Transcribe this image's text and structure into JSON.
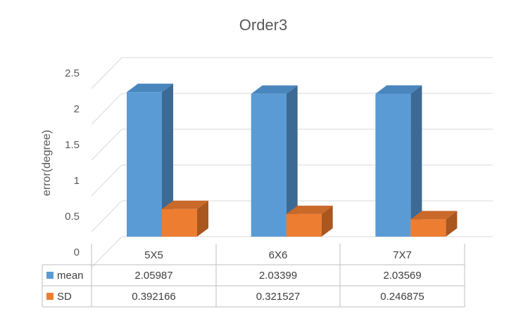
{
  "chart_data": {
    "type": "bar",
    "title": "Order3",
    "xlabel": "",
    "ylabel": "error(degree)",
    "ylim": [
      0,
      2.5
    ],
    "yticks": [
      0,
      0.5,
      1,
      1.5,
      2,
      2.5
    ],
    "ytick_labels": [
      "0",
      "0.5",
      "1",
      "1.5",
      "2",
      "2.5"
    ],
    "grid": true,
    "legend": "data-table",
    "categories": [
      "5X5",
      "6X6",
      "7X7"
    ],
    "series": [
      {
        "name": "mean",
        "values": [
          2.05987,
          2.03399,
          2.03569
        ],
        "value_labels": [
          "2.05987",
          "2.03399",
          "2.03569"
        ],
        "color": "#5b9bd5",
        "side_color": "#3d6a94",
        "top_color": "#4a86be"
      },
      {
        "name": "SD",
        "values": [
          0.392166,
          0.321527,
          0.246875
        ],
        "value_labels": [
          "0.392166",
          "0.321527",
          "0.246875"
        ],
        "color": "#ed7d31",
        "side_color": "#a9561f",
        "top_color": "#c9692a"
      }
    ]
  }
}
